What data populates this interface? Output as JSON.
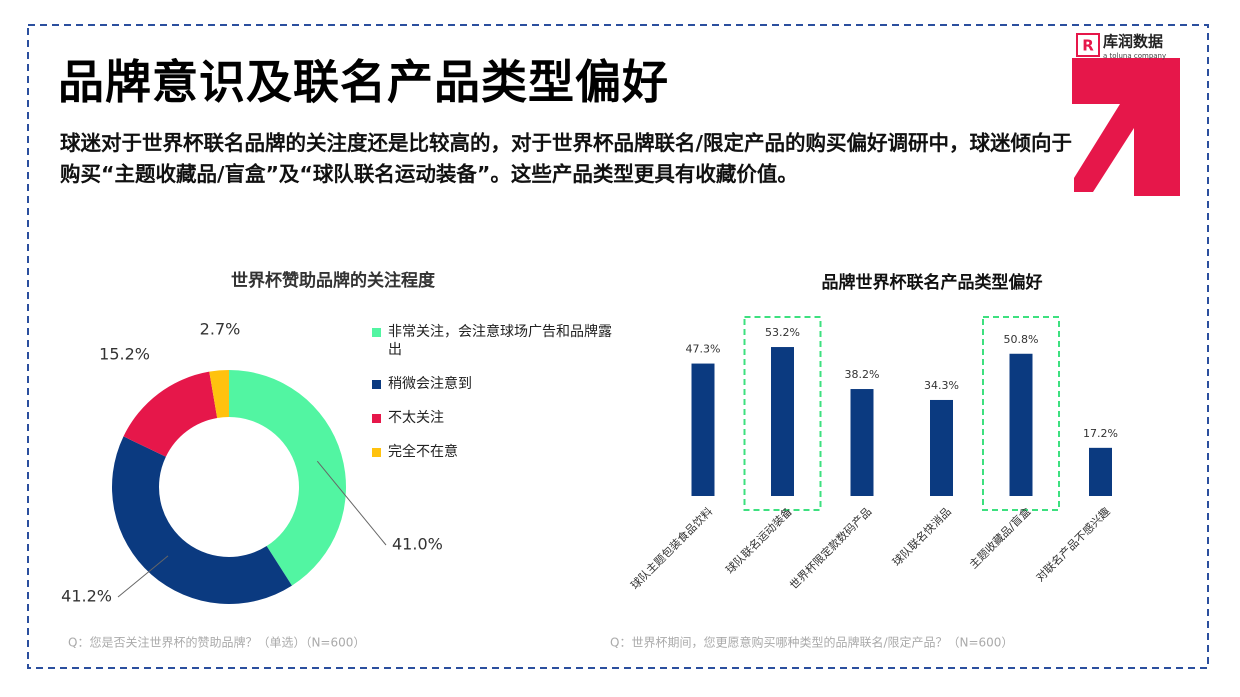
{
  "title": "品牌意识及联名产品类型偏好",
  "body": "球迷对于世界杯联名品牌的关注度还是比较高的，对于世界杯品牌联名/限定产品的购买偏好调研中，球迷倾向于购买“主题收藏品/盲盒”及“球队联名运动装备”。这些产品类型更具有收藏价值。",
  "logo": {
    "name": "库润数据",
    "tagline": "a toluna company"
  },
  "chart_data": [
    {
      "type": "donut",
      "title": "世界杯赞助品牌的关注程度",
      "categories": [
        "非常关注，会注意球场广告和品牌露出",
        "稍微会注意到",
        "不太关注",
        "完全不在意"
      ],
      "values": [
        41.0,
        41.2,
        15.2,
        2.7
      ],
      "value_labels": [
        "41.0%",
        "41.2%",
        "15.2%",
        "2.7%"
      ],
      "colors": [
        "#52f5a2",
        "#0b3a80",
        "#e6174a",
        "#ffc20e"
      ],
      "note": "Q：您是否关注世界杯的赞助品牌？（单选）（N=600）"
    },
    {
      "type": "bar",
      "title": "品牌世界杯联名产品类型偏好",
      "categories": [
        "球队主题包装食品饮料",
        "球队联名运动装备",
        "世界杯限定款数码产品",
        "球队联名快消品",
        "主题收藏品/盲盒",
        "对联名产品不感兴趣"
      ],
      "values": [
        47.3,
        53.2,
        38.2,
        34.3,
        50.8,
        17.2
      ],
      "value_labels": [
        "47.3%",
        "53.2%",
        "38.2%",
        "34.3%",
        "50.8%",
        "17.2%"
      ],
      "color": "#0b3a80",
      "ylim": [
        0,
        60
      ],
      "highlight": [
        1,
        4
      ],
      "note": "Q：世界杯期间，您更愿意购买哪种类型的品牌联名/限定产品？（N=600）"
    }
  ]
}
